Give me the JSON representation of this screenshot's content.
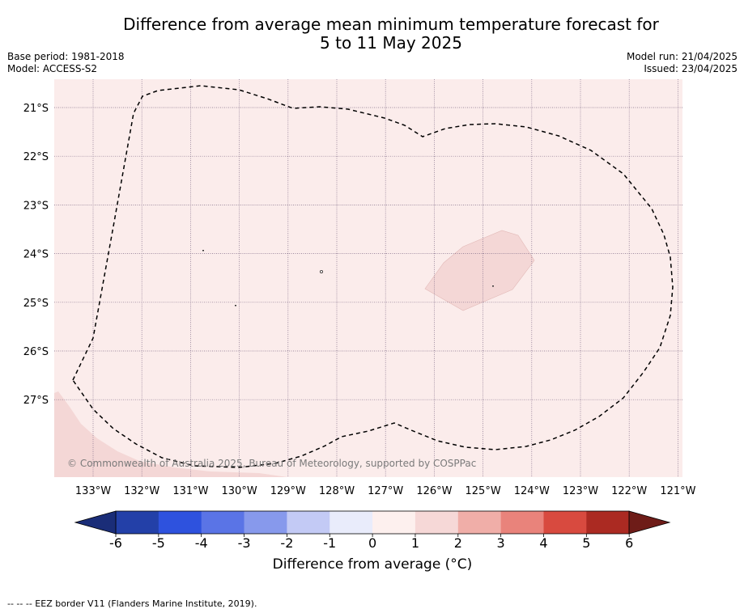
{
  "title_line1": "Difference from average mean minimum temperature forecast for",
  "title_line2": "5 to 11 May 2025",
  "base_period": "Base period: 1981-2018",
  "model": "Model: ACCESS-S2",
  "model_run": "Model run: 21/04/2025",
  "issued": "Issued: 23/04/2025",
  "copyright": "© Commonwealth of Australia 2025, Bureau of Meteorology, supported by COSPPac",
  "lat_labels": [
    "21°S",
    "22°S",
    "23°S",
    "24°S",
    "25°S",
    "26°S",
    "27°S"
  ],
  "lon_labels": [
    "133°W",
    "132°W",
    "131°W",
    "130°W",
    "129°W",
    "128°W",
    "127°W",
    "126°W",
    "125°W",
    "124°W",
    "123°W",
    "122°W",
    "121°W"
  ],
  "colorbar": {
    "ticks": [
      "-6",
      "-5",
      "-4",
      "-3",
      "-2",
      "-1",
      "0",
      "1",
      "2",
      "3",
      "4",
      "5",
      "6"
    ],
    "colors": [
      "#2340a8",
      "#2e52de",
      "#5a74e6",
      "#8799ec",
      "#c3caf5",
      "#e9ecfb",
      "#fdf0ee",
      "#f6d8d7",
      "#f0aea8",
      "#e9837b",
      "#d84a3f",
      "#ab2a22"
    ],
    "under_color": "#1a2d78",
    "over_color": "#6e1c18",
    "label": "Difference from average (°C)"
  },
  "map_colors": {
    "background": "#fbeceb",
    "warm_patch": "#f4d7d6",
    "grid": "#7f6a86",
    "eez": "#000000"
  },
  "footer": "--  --  -- EEZ border V11 (Flanders Marine Institute, 2019)."
}
